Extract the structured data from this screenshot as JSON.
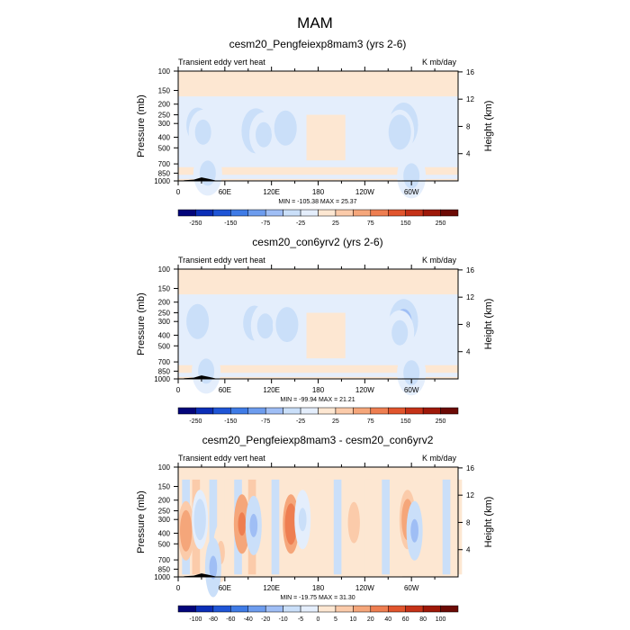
{
  "figure": {
    "title": "MAM"
  },
  "chart_data": [
    {
      "type": "heatmap",
      "title": "cesm20_Pengfeiexp8mam3 (yrs 2-6)",
      "left_label": "Transient eddy vert heat",
      "right_label": "K mb/day",
      "ylabel": "Pressure (mb)",
      "ylabel_right": "Height (km)",
      "y_ticks": [
        "100",
        "150",
        "200",
        "250",
        "300",
        "400",
        "500",
        "700",
        "850",
        "1000"
      ],
      "y_ticks_right": [
        "16",
        "12",
        "8",
        "4"
      ],
      "x_ticks": [
        "0",
        "60E",
        "120E",
        "180",
        "120W",
        "60W"
      ],
      "stats": "MIN = -105.38  MAX =  25.37",
      "colorbar": {
        "levels": [
          "-250",
          "-150",
          "-75",
          "-25",
          "25",
          "75",
          "150",
          "250"
        ],
        "colors": [
          "#03057a",
          "#0b2eb7",
          "#1f55d6",
          "#3f7be6",
          "#6d9cee",
          "#9fbef5",
          "#cadff9",
          "#e4eefc",
          "#fde7d2",
          "#fbcbaa",
          "#f5a67a",
          "#ee7e51",
          "#e1552d",
          "#c53218",
          "#9e1808",
          "#6c0a05"
        ]
      },
      "features": [
        {
          "lon": 25,
          "p": 310,
          "v": -40
        },
        {
          "lon": 32,
          "p": 360,
          "v": -30
        },
        {
          "lon": 100,
          "p": 350,
          "v": -55
        },
        {
          "lon": 110,
          "p": 380,
          "v": -35
        },
        {
          "lon": 138,
          "p": 330,
          "v": -40
        },
        {
          "lon": 290,
          "p": 310,
          "v": -70
        },
        {
          "lon": 285,
          "p": 360,
          "v": -40
        },
        {
          "lon": 38,
          "p": 850,
          "v": -35
        },
        {
          "lon": 300,
          "p": 900,
          "v": -30
        }
      ]
    },
    {
      "type": "heatmap",
      "title": "cesm20_con6yrv2 (yrs 2-6)",
      "left_label": "Transient eddy vert heat",
      "right_label": "K mb/day",
      "ylabel": "Pressure (mb)",
      "ylabel_right": "Height (km)",
      "y_ticks": [
        "100",
        "150",
        "200",
        "250",
        "300",
        "400",
        "500",
        "700",
        "850",
        "1000"
      ],
      "y_ticks_right": [
        "16",
        "12",
        "8",
        "4"
      ],
      "x_ticks": [
        "0",
        "60E",
        "120E",
        "180",
        "120W",
        "60W"
      ],
      "stats": "MIN = -99.94  MAX =  21.21",
      "colorbar": {
        "levels": [
          "-250",
          "-150",
          "-75",
          "-25",
          "25",
          "75",
          "150",
          "250"
        ],
        "colors": [
          "#03057a",
          "#0b2eb7",
          "#1f55d6",
          "#3f7be6",
          "#6d9cee",
          "#9fbef5",
          "#cadff9",
          "#e4eefc",
          "#fde7d2",
          "#fbcbaa",
          "#f5a67a",
          "#ee7e51",
          "#e1552d",
          "#c53218",
          "#9e1808",
          "#6c0a05"
        ]
      },
      "features": [
        {
          "lon": 25,
          "p": 300,
          "v": -40
        },
        {
          "lon": 98,
          "p": 310,
          "v": -40
        },
        {
          "lon": 112,
          "p": 330,
          "v": -35
        },
        {
          "lon": 140,
          "p": 320,
          "v": -40
        },
        {
          "lon": 290,
          "p": 300,
          "v": -65
        },
        {
          "lon": 285,
          "p": 380,
          "v": -35
        },
        {
          "lon": 36,
          "p": 850,
          "v": -30
        },
        {
          "lon": 300,
          "p": 880,
          "v": -30
        }
      ]
    },
    {
      "type": "heatmap",
      "title": "cesm20_Pengfeiexp8mam3 - cesm20_con6yrv2",
      "left_label": "Transient eddy vert heat",
      "right_label": "K mb/day",
      "ylabel": "Pressure (mb)",
      "ylabel_right": "Height (km)",
      "y_ticks": [
        "100",
        "150",
        "200",
        "250",
        "300",
        "400",
        "500",
        "700",
        "850",
        "1000"
      ],
      "y_ticks_right": [
        "16",
        "12",
        "8",
        "4"
      ],
      "x_ticks": [
        "0",
        "60E",
        "120E",
        "180",
        "120W",
        "60W"
      ],
      "stats": "MIN = -19.75  MAX =  31.30",
      "colorbar": {
        "levels": [
          "-100",
          "-80",
          "-60",
          "-40",
          "-20",
          "-10",
          "-5",
          "0",
          "5",
          "10",
          "20",
          "40",
          "60",
          "80",
          "100"
        ],
        "colors": [
          "#03057a",
          "#0b2eb7",
          "#1f55d6",
          "#3f7be6",
          "#6d9cee",
          "#9fbef5",
          "#cadff9",
          "#e4eefc",
          "#fde7d2",
          "#fbcbaa",
          "#f5a67a",
          "#ee7e51",
          "#e1552d",
          "#c53218",
          "#9e1808",
          "#6c0a05"
        ]
      },
      "features": [
        {
          "lon": 10,
          "p": 380,
          "v": 15
        },
        {
          "lon": 28,
          "p": 300,
          "v": -8
        },
        {
          "lon": 82,
          "p": 330,
          "v": 22
        },
        {
          "lon": 97,
          "p": 340,
          "v": -10
        },
        {
          "lon": 145,
          "p": 330,
          "v": 30
        },
        {
          "lon": 160,
          "p": 300,
          "v": -6
        },
        {
          "lon": 226,
          "p": 320,
          "v": 8
        },
        {
          "lon": 295,
          "p": 300,
          "v": 15
        },
        {
          "lon": 304,
          "p": 380,
          "v": -12
        },
        {
          "lon": 55,
          "p": 600,
          "v": 6
        },
        {
          "lon": 45,
          "p": 820,
          "v": -10
        }
      ]
    }
  ]
}
